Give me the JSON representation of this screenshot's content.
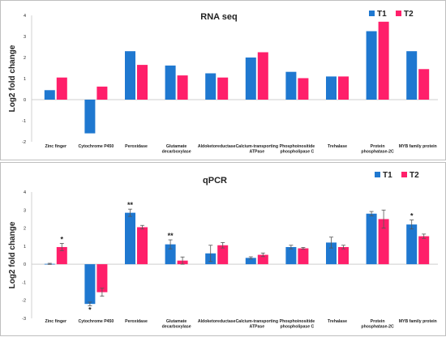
{
  "colors": {
    "T1": "#1f78d0",
    "T2": "#ff1f6a",
    "axis": "#404040",
    "text": "#222222"
  },
  "chart_data": [
    {
      "type": "bar",
      "title": "RNA seq",
      "ylabel": "Log2  fold change",
      "ylim": [
        -2,
        4
      ],
      "yticks": [
        -2,
        -1,
        0,
        1,
        2,
        3,
        4
      ],
      "categories": [
        "Zinc finger",
        "Cytochrome P450",
        "Peroxidase",
        "Glutamate decarboxylase",
        "Aldoketoreductase",
        "Calcium-transporting ATPase",
        "Phosphoinositide phospholipase C",
        "Trehalase",
        "Protein phosphatase-2C",
        "MYB family protein"
      ],
      "category_lines": [
        [
          "Zinc finger"
        ],
        [
          "Cytochrome P450"
        ],
        [
          "Peroxidase"
        ],
        [
          "Glutamate",
          "decarboxylase"
        ],
        [
          "Aldoketoreductase"
        ],
        [
          "Calcium-transporting",
          "ATPase"
        ],
        [
          "Phosphoinositide",
          "phospholipase C"
        ],
        [
          "Trehalase"
        ],
        [
          "Protein",
          "phosphatase-2C"
        ],
        [
          "MYB family protein"
        ]
      ],
      "series": [
        {
          "name": "T1",
          "values": [
            0.45,
            -1.6,
            2.3,
            1.62,
            1.25,
            2.0,
            1.32,
            1.1,
            3.25,
            2.3
          ]
        },
        {
          "name": "T2",
          "values": [
            1.05,
            0.62,
            1.65,
            1.15,
            1.05,
            2.25,
            1.02,
            1.1,
            3.7,
            1.45
          ]
        }
      ],
      "legend": "top-right"
    },
    {
      "type": "bar",
      "title": "qPCR",
      "ylabel": "Log2 fold change",
      "ylim": [
        -3,
        4
      ],
      "yticks": [
        -3,
        -2,
        -1,
        0,
        1,
        2,
        3,
        4
      ],
      "categories": [
        "Zinc finger",
        "Cytochrome P450",
        "Peroxidase",
        "Glutamate decarboxylase",
        "Aldoketoreductase",
        "Calcium-transporting ATPase",
        "Phosphoinositide phospholipase C",
        "Trehalase",
        "Protein phosphatase-2C",
        "MYB family protein"
      ],
      "category_lines": [
        [
          "Zinc finger"
        ],
        [
          "Cytochrome P450"
        ],
        [
          "Peroxidase"
        ],
        [
          "Glutamate",
          "decarboxylase"
        ],
        [
          "Aldoketoreductase"
        ],
        [
          "Calcium-transporting",
          "ATPase"
        ],
        [
          "Phosphoinositide",
          "phospholipase C"
        ],
        [
          "Trehalase"
        ],
        [
          "Protein",
          "phosphatase-2C"
        ],
        [
          "MYB family protein"
        ]
      ],
      "series": [
        {
          "name": "T1",
          "values": [
            0.02,
            -2.2,
            2.85,
            1.1,
            0.6,
            0.35,
            0.95,
            1.2,
            2.8,
            2.2
          ],
          "errors": [
            0.03,
            0.1,
            0.2,
            0.25,
            0.45,
            0.06,
            0.1,
            0.3,
            0.12,
            0.25
          ]
        },
        {
          "name": "T2",
          "values": [
            0.95,
            -1.55,
            2.05,
            0.2,
            1.05,
            0.52,
            0.88,
            0.95,
            2.5,
            1.55
          ],
          "errors": [
            0.2,
            0.22,
            0.1,
            0.2,
            0.15,
            0.1,
            0.05,
            0.1,
            0.5,
            0.12
          ]
        }
      ],
      "annotations": [
        {
          "category": "Zinc finger",
          "series": "T2",
          "text": "*"
        },
        {
          "category": "Cytochrome P450",
          "series": "T1",
          "text": "*"
        },
        {
          "category": "Peroxidase",
          "series": "T1",
          "text": "**"
        },
        {
          "category": "Glutamate decarboxylase",
          "series": "T1",
          "text": "**"
        },
        {
          "category": "MYB family protein",
          "series": "T1",
          "text": "*"
        }
      ],
      "legend": "top-right"
    }
  ]
}
